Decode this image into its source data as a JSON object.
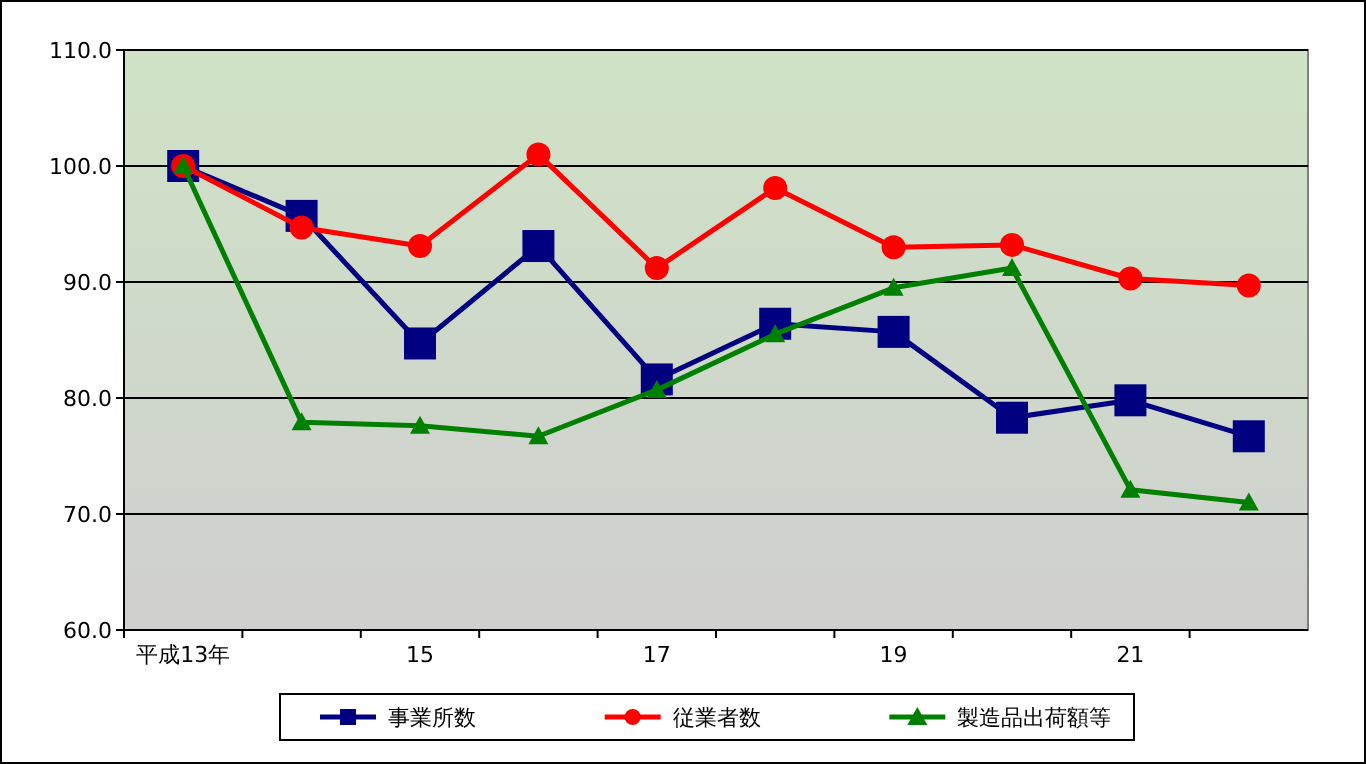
{
  "chart_data": {
    "type": "line",
    "categories": [
      "平成13年",
      null,
      "15",
      null,
      "17",
      null,
      "19",
      null,
      "21",
      null
    ],
    "series": [
      {
        "name": "事業所数",
        "color": "#000080",
        "marker": "square",
        "values": [
          100.0,
          95.7,
          84.7,
          93.1,
          81.6,
          86.4,
          85.7,
          78.3,
          79.8,
          76.7
        ]
      },
      {
        "name": "従業者数",
        "color": "#ff0000",
        "marker": "circle",
        "values": [
          100.0,
          94.7,
          93.1,
          101.0,
          91.2,
          98.1,
          93.0,
          93.2,
          90.3,
          89.7
        ]
      },
      {
        "name": "製造品出荷額等",
        "color": "#008000",
        "marker": "triangle",
        "values": [
          100.0,
          77.9,
          77.6,
          76.7,
          80.7,
          85.5,
          89.5,
          91.2,
          72.1,
          71.0
        ]
      }
    ],
    "ylim": [
      60,
      110
    ],
    "yticks": [
      {
        "value": 60,
        "label": "60.0"
      },
      {
        "value": 70,
        "label": "70.0"
      },
      {
        "value": 80,
        "label": "80.0"
      },
      {
        "value": 90,
        "label": "90.0"
      },
      {
        "value": 100,
        "label": "100.0"
      },
      {
        "value": 110,
        "label": "110.0"
      }
    ],
    "grid": "y",
    "legend": "bottom"
  }
}
